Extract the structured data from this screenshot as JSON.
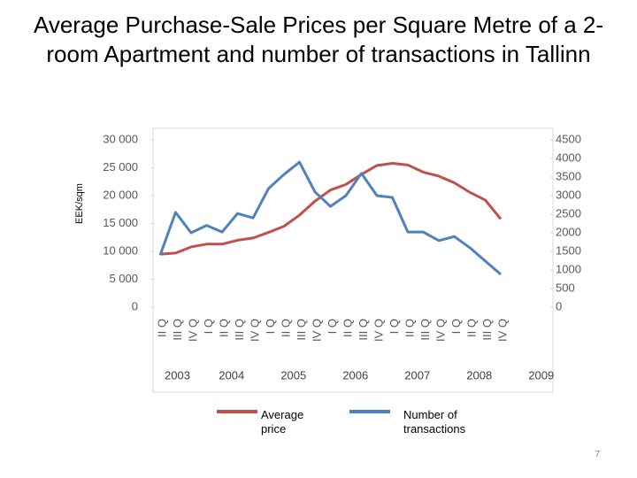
{
  "chart_data": {
    "type": "line",
    "title": "Average Purchase-Sale Prices per Square Metre of a 2-room Apartment and number of transactions in Tallinn",
    "y_axis_label": "EEK/sqm",
    "categories": [
      "II Q",
      "III Q",
      "IV Q",
      "I Q",
      "II Q",
      "III Q",
      "IV Q",
      "I Q",
      "II Q",
      "III Q",
      "IV Q",
      "I Q",
      "II Q",
      "III Q",
      "IV Q",
      "I Q",
      "II Q",
      "III Q",
      "IV Q",
      "I Q",
      "II Q",
      "III Q",
      "IV Q"
    ],
    "years": [
      "2003",
      "2004",
      "2005",
      "2006",
      "2007",
      "2008",
      "2009"
    ],
    "series": [
      {
        "name": "Average price",
        "color": "#c0504d",
        "axis": "y",
        "values": [
          9500,
          9700,
          10800,
          11300,
          11300,
          12000,
          12400,
          13400,
          14500,
          16500,
          19000,
          21000,
          22000,
          23800,
          25400,
          25800,
          25500,
          24200,
          23500,
          22300,
          20600,
          19200,
          15800
        ]
      },
      {
        "name": "Number of transactions",
        "color": "#4f81bd",
        "axis": "y2",
        "values": [
          1400,
          2550,
          2000,
          2200,
          2020,
          2520,
          2400,
          3190,
          3570,
          3900,
          3100,
          2710,
          3000,
          3600,
          3000,
          2950,
          2020,
          2020,
          1790,
          1900,
          1600,
          1240,
          880
        ]
      }
    ],
    "ylim": [
      0,
      30000
    ],
    "yticks": [
      0,
      {
        "value": 5000,
        "label": "5 000"
      },
      {
        "value": 10000,
        "label": "10 000"
      },
      {
        "value": 15000,
        "label": "15 000"
      },
      {
        "value": 20000,
        "label": "20 000"
      },
      {
        "value": 25000,
        "label": "25 000"
      },
      {
        "value": 30000,
        "label": "30 000"
      }
    ],
    "y2lim": [
      0,
      4500
    ],
    "y2ticks": [
      0,
      500,
      1000,
      1500,
      2000,
      2500,
      3000,
      3500,
      4000,
      4500
    ],
    "page_number": "7"
  }
}
